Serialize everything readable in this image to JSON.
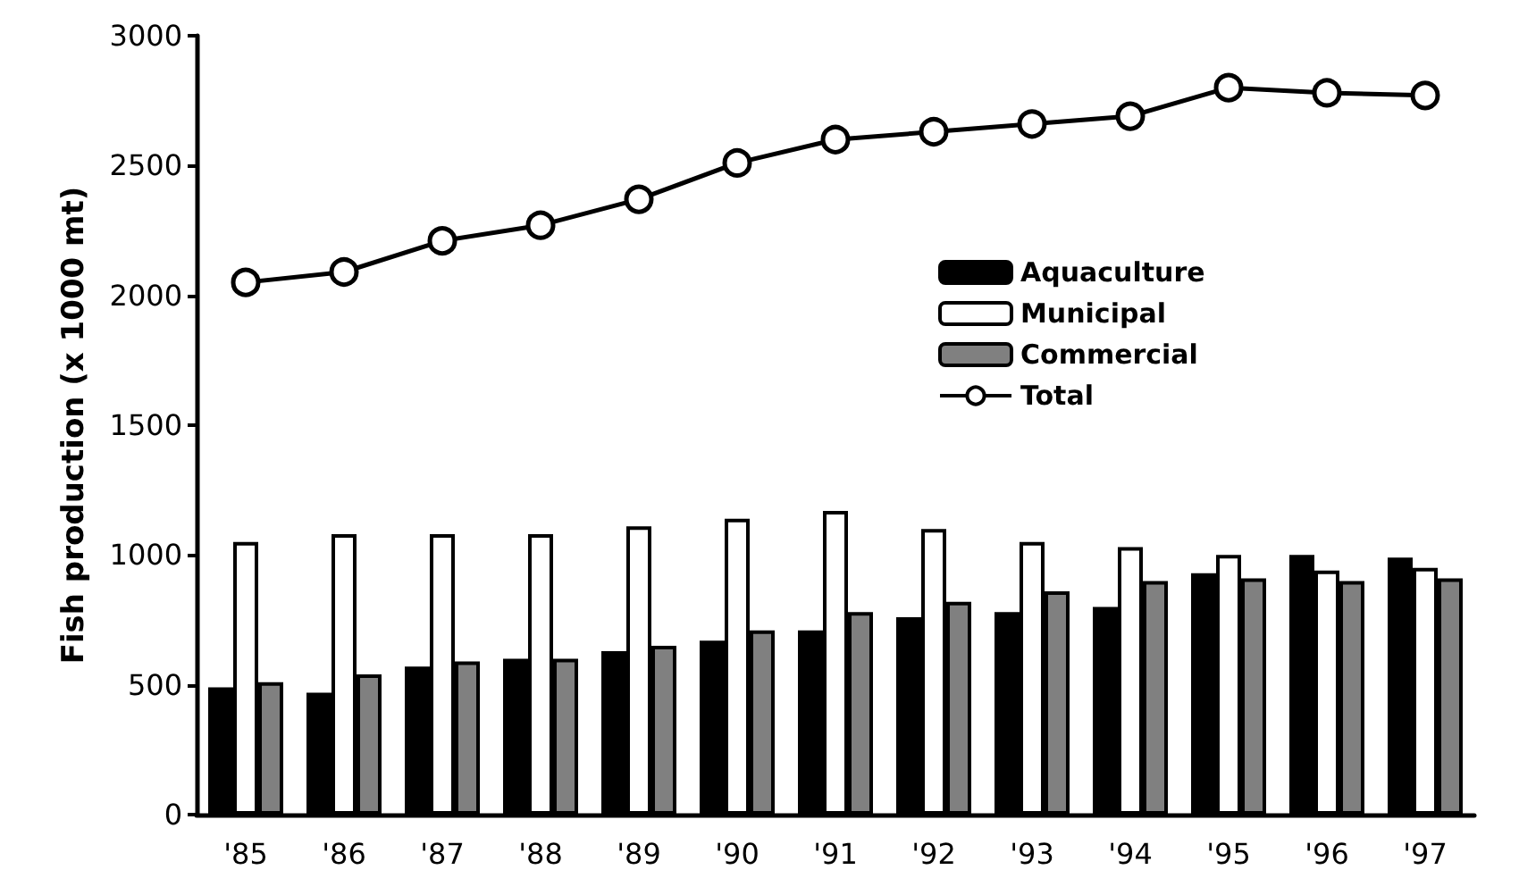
{
  "chart_data": {
    "type": "bar",
    "ylabel": "Fish production (x 1000 mt)",
    "categories": [
      "'85",
      "'86",
      "'87",
      "'88",
      "'89",
      "'90",
      "'91",
      "'92",
      "'93",
      "'94",
      "'95",
      "'96",
      "'97"
    ],
    "series": [
      {
        "name": "Aquaculture",
        "color": "#000000",
        "values": [
          490,
          470,
          570,
          600,
          630,
          670,
          710,
          760,
          780,
          800,
          930,
          1000,
          990
        ]
      },
      {
        "name": "Municipal",
        "color": "#ffffff",
        "values": [
          1050,
          1080,
          1080,
          1080,
          1110,
          1140,
          1170,
          1100,
          1050,
          1030,
          1000,
          940,
          950
        ]
      },
      {
        "name": "Commercial",
        "color": "#808080",
        "values": [
          510,
          540,
          590,
          600,
          650,
          710,
          780,
          820,
          860,
          900,
          910,
          900,
          910
        ]
      },
      {
        "name": "Total",
        "type": "line",
        "color": "#000000",
        "marker": "circle",
        "values": [
          2050,
          2090,
          2210,
          2270,
          2370,
          2510,
          2600,
          2630,
          2660,
          2690,
          2800,
          2780,
          2770
        ]
      }
    ],
    "ylim": [
      0,
      3000
    ],
    "yticks": [
      0,
      500,
      1000,
      1500,
      2000,
      2500,
      3000
    ],
    "grid": false,
    "legend": "right"
  }
}
